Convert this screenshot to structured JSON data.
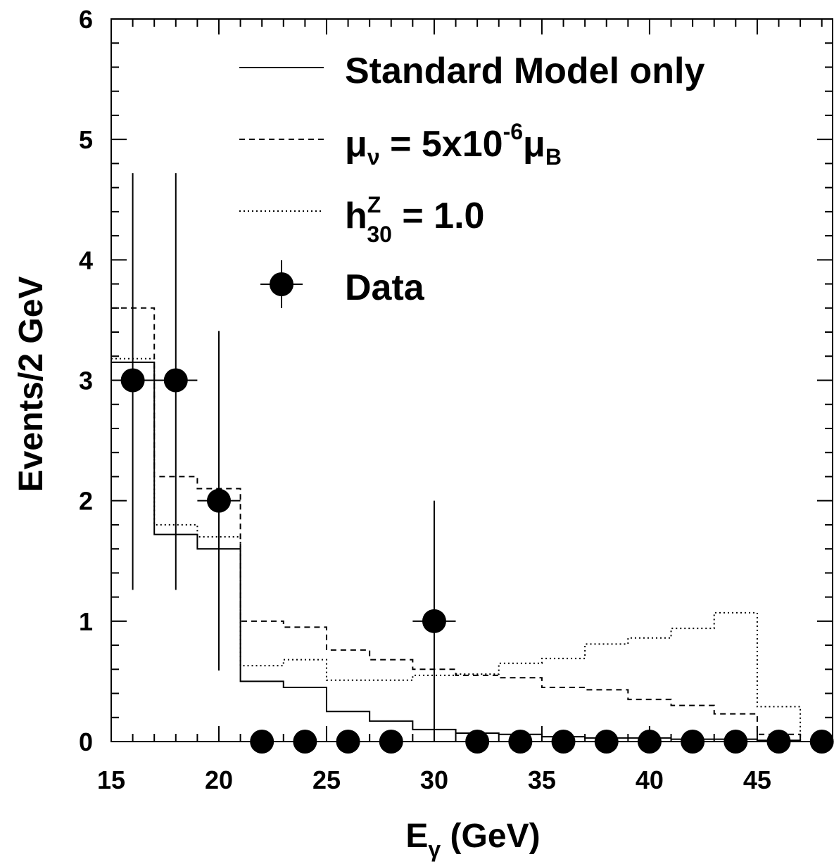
{
  "chart_data": {
    "type": "line",
    "title": "",
    "xlabel": "E",
    "xlabel_sub": "γ",
    "xlabel_unit": " (GeV)",
    "ylabel": "Events/2 GeV",
    "xlim": [
      15,
      48.5
    ],
    "ylim": [
      0,
      6
    ],
    "x_ticks": [
      15,
      20,
      25,
      30,
      35,
      40,
      45
    ],
    "y_ticks": [
      0,
      1,
      2,
      3,
      4,
      5,
      6
    ],
    "bin_edges": [
      15,
      17,
      19,
      21,
      23,
      25,
      27,
      29,
      31,
      33,
      35,
      37,
      39,
      41,
      43,
      45,
      47
    ],
    "series": [
      {
        "key": "sm",
        "style": "solid",
        "values": [
          3.15,
          1.72,
          1.6,
          0.5,
          0.45,
          0.25,
          0.17,
          0.1,
          0.07,
          0.06,
          0.04,
          0.03,
          0.03,
          0.02,
          0.02,
          0.01
        ]
      },
      {
        "key": "mu",
        "style": "dashed",
        "values": [
          3.6,
          2.2,
          2.1,
          1.0,
          0.95,
          0.76,
          0.68,
          0.6,
          0.55,
          0.53,
          0.45,
          0.43,
          0.35,
          0.3,
          0.23,
          0.06
        ]
      },
      {
        "key": "h30",
        "style": "dotted",
        "values": [
          3.18,
          1.8,
          1.7,
          0.63,
          0.68,
          0.51,
          0.51,
          0.55,
          0.56,
          0.65,
          0.69,
          0.81,
          0.86,
          0.94,
          1.07,
          0.29
        ]
      }
    ],
    "data_points": {
      "x": [
        16,
        18,
        20,
        22,
        24,
        26,
        28,
        30,
        32,
        34,
        36,
        38,
        40,
        42,
        44,
        46,
        48
      ],
      "y": [
        3,
        3,
        2,
        0,
        0,
        0,
        0,
        1,
        0,
        0,
        0,
        0,
        0,
        0,
        0,
        0,
        0
      ],
      "y_err_low": [
        1.74,
        1.74,
        1.41,
        0,
        0,
        0,
        0,
        1.0,
        0,
        0,
        0,
        0,
        0,
        0,
        0,
        0,
        0
      ],
      "y_err_high": [
        1.72,
        1.72,
        1.41,
        0,
        0,
        0,
        0,
        1.0,
        0,
        0,
        0,
        0,
        0,
        0,
        0,
        0,
        0
      ],
      "x_half_width": 1
    },
    "legend": {
      "position": "top-right",
      "entries": [
        {
          "key": "sm",
          "label": "Standard Model only"
        },
        {
          "key": "mu",
          "label_parts": {
            "a": "μ",
            "a_sub": "ν",
            "b": " = 5x10",
            "b_sup": "-6",
            "c": "μ",
            "c_sub": "B"
          }
        },
        {
          "key": "h30",
          "label_parts": {
            "a": "h",
            "a_sup": "Z",
            "a_sub": "30",
            "b": " = 1.0"
          }
        },
        {
          "key": "data",
          "label": "Data"
        }
      ]
    },
    "grid": false,
    "colors": {
      "line": "#000000",
      "background": "#ffffff"
    }
  }
}
